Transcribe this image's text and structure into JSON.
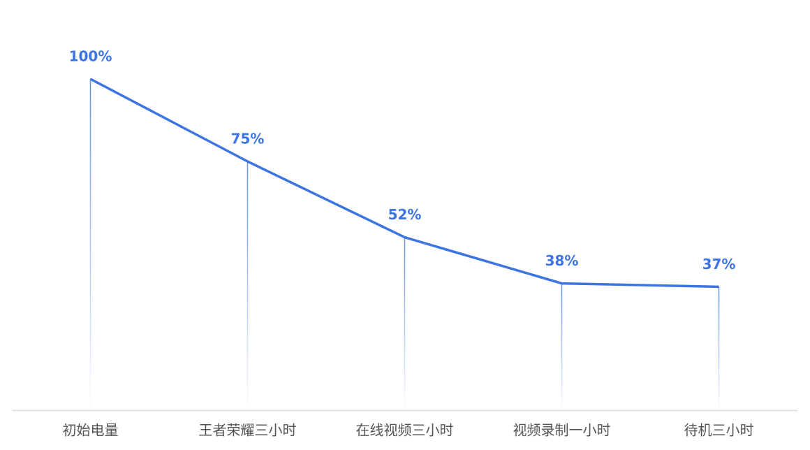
{
  "chart_data": {
    "type": "line",
    "categories": [
      "初始电量",
      "王者荣耀三小时",
      "在线视频三小时",
      "视频录制一小时",
      "待机三小时"
    ],
    "values": [
      100,
      75,
      52,
      38,
      37
    ],
    "value_labels": [
      "100%",
      "75%",
      "52%",
      "38%",
      "37%"
    ],
    "color": "#3c74e0",
    "ylim": [
      0,
      100
    ]
  }
}
